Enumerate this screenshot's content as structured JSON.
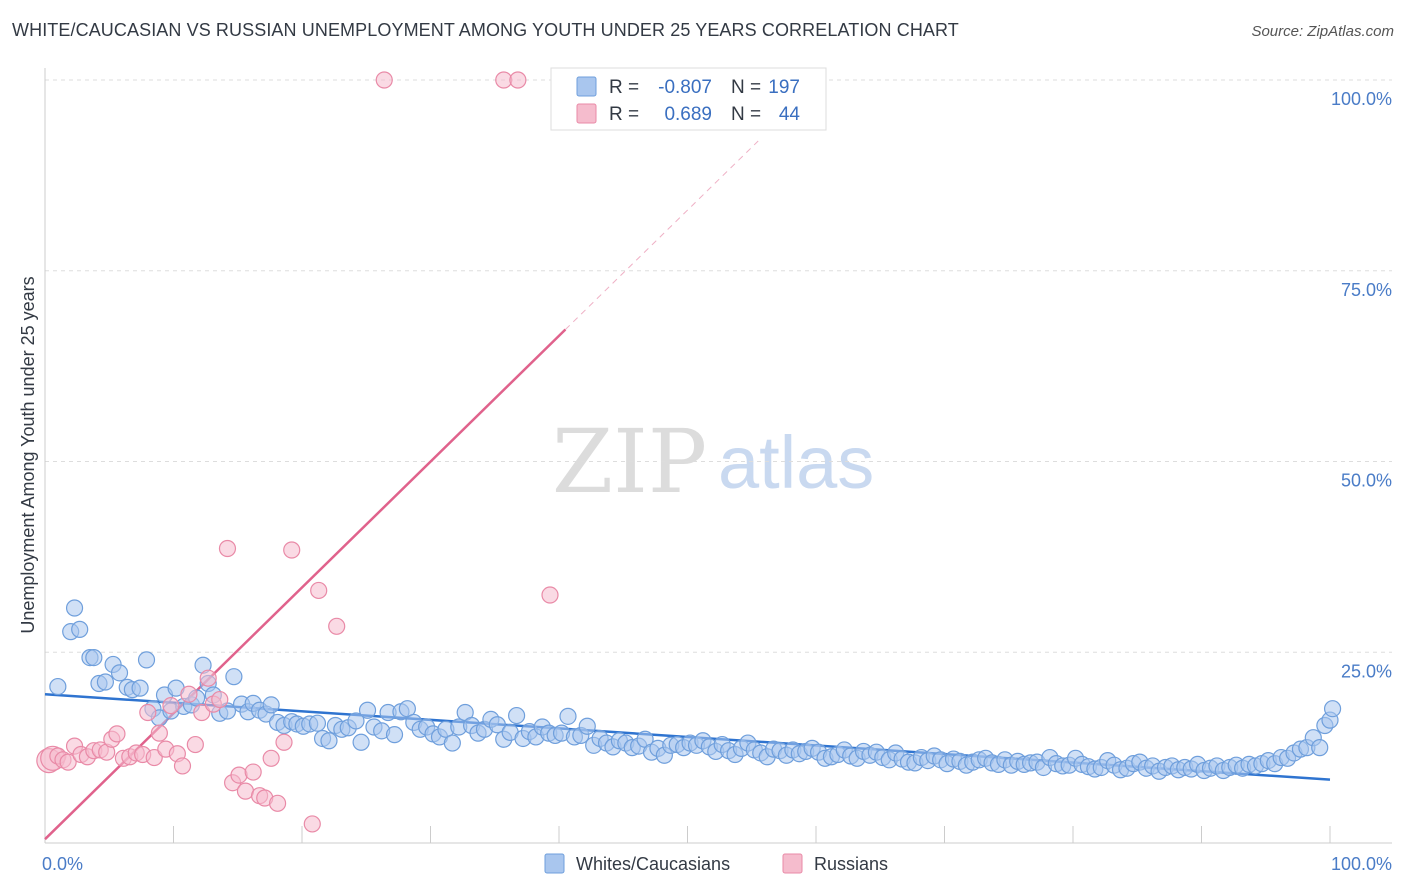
{
  "title": "WHITE/CAUCASIAN VS RUSSIAN UNEMPLOYMENT AMONG YOUTH UNDER 25 YEARS CORRELATION CHART",
  "source": "Source: ZipAtlas.com",
  "watermark": {
    "zip": "ZIP",
    "atlas": "atlas"
  },
  "colors": {
    "blue_fill": "#a9c6ee",
    "blue_stroke": "#6f9fdc",
    "blue_line": "#2f74d0",
    "pink_fill": "#f5bccd",
    "pink_stroke": "#e98aa7",
    "pink_line": "#e0628c",
    "grid": "#dddddd",
    "tick_text": "#4a7cc7"
  },
  "legend": {
    "rows": [
      {
        "r_label": "R =",
        "r_value": "-0.807",
        "n_label": "N =",
        "n_value": "197"
      },
      {
        "r_label": "R =",
        "r_value": "0.689",
        "n_label": "N =",
        "n_value": "44"
      }
    ]
  },
  "bottom_legend": [
    "Whites/Caucasians",
    "Russians"
  ],
  "chart_data": {
    "type": "scatter",
    "title": "WHITE/CAUCASIAN VS RUSSIAN UNEMPLOYMENT AMONG YOUTH UNDER 25 YEARS CORRELATION CHART",
    "xlabel": "",
    "ylabel": "Unemployment Among Youth under 25 years",
    "xlim": [
      0,
      100
    ],
    "ylim": [
      0,
      100
    ],
    "x_tick_labels": [
      {
        "value": 0,
        "label": "0.0%"
      },
      {
        "value": 100,
        "label": "100.0%"
      }
    ],
    "y_tick_labels": [
      {
        "value": 25,
        "label": "25.0%"
      },
      {
        "value": 50,
        "label": "50.0%"
      },
      {
        "value": 75,
        "label": "75.0%"
      },
      {
        "value": 100,
        "label": "100.0%"
      }
    ],
    "series": [
      {
        "name": "Whites/Caucasians",
        "R": -0.807,
        "N": 197,
        "trend": {
          "x0": 0,
          "y0": 19.5,
          "x1": 100,
          "y1": 8.3
        },
        "points": [
          [
            1,
            20.5
          ],
          [
            2,
            27.7
          ],
          [
            2.3,
            30.8
          ],
          [
            2.7,
            28
          ],
          [
            3.5,
            24.3
          ],
          [
            3.8,
            24.3
          ],
          [
            4.2,
            20.9
          ],
          [
            4.7,
            21.1
          ],
          [
            5.3,
            23.4
          ],
          [
            5.8,
            22.3
          ],
          [
            6.4,
            20.4
          ],
          [
            6.8,
            20.1
          ],
          [
            7.4,
            20.3
          ],
          [
            7.9,
            24
          ],
          [
            8.4,
            17.6
          ],
          [
            8.9,
            16.4
          ],
          [
            9.3,
            19.4
          ],
          [
            9.8,
            17.3
          ],
          [
            10.2,
            20.3
          ],
          [
            10.8,
            17.9
          ],
          [
            11.4,
            18.1
          ],
          [
            11.8,
            19
          ],
          [
            12.3,
            23.3
          ],
          [
            12.7,
            20.9
          ],
          [
            13.1,
            19.4
          ],
          [
            13.6,
            17
          ],
          [
            14.2,
            17.3
          ],
          [
            14.7,
            21.8
          ],
          [
            15.3,
            18.2
          ],
          [
            15.8,
            17.2
          ],
          [
            16.2,
            18.3
          ],
          [
            16.7,
            17.4
          ],
          [
            17.2,
            16.9
          ],
          [
            17.6,
            18.1
          ],
          [
            18.1,
            15.8
          ],
          [
            18.6,
            15.4
          ],
          [
            19.2,
            15.9
          ],
          [
            19.6,
            15.6
          ],
          [
            20.1,
            15.3
          ],
          [
            20.6,
            15.6
          ],
          [
            21.2,
            15.7
          ],
          [
            21.6,
            13.7
          ],
          [
            22.1,
            13.4
          ],
          [
            22.6,
            15.4
          ],
          [
            23.1,
            14.9
          ],
          [
            23.6,
            15.1
          ],
          [
            24.2,
            16
          ],
          [
            24.6,
            13.2
          ],
          [
            25.1,
            17.4
          ],
          [
            25.6,
            15.2
          ],
          [
            26.2,
            14.7
          ],
          [
            26.7,
            17.1
          ],
          [
            27.2,
            14.2
          ],
          [
            27.7,
            17.2
          ],
          [
            28.2,
            17.6
          ],
          [
            28.7,
            15.8
          ],
          [
            29.2,
            14.9
          ],
          [
            29.7,
            15.2
          ],
          [
            30.2,
            14.3
          ],
          [
            30.7,
            13.9
          ],
          [
            31.2,
            14.9
          ],
          [
            31.7,
            13.1
          ],
          [
            32.2,
            15.2
          ],
          [
            32.7,
            17.1
          ],
          [
            33.2,
            15.4
          ],
          [
            33.7,
            14.4
          ],
          [
            34.2,
            14.9
          ],
          [
            34.7,
            16.2
          ],
          [
            35.2,
            15.5
          ],
          [
            35.7,
            13.6
          ],
          [
            36.2,
            14.5
          ],
          [
            36.7,
            16.7
          ],
          [
            37.2,
            13.7
          ],
          [
            37.7,
            14.6
          ],
          [
            38.2,
            13.9
          ],
          [
            38.7,
            15.2
          ],
          [
            39.2,
            14.4
          ],
          [
            39.7,
            14.1
          ],
          [
            40.2,
            14.4
          ],
          [
            40.7,
            16.6
          ],
          [
            41.2,
            13.9
          ],
          [
            41.7,
            14.1
          ],
          [
            42.2,
            15.3
          ],
          [
            42.7,
            12.8
          ],
          [
            43.2,
            13.7
          ],
          [
            43.7,
            13.1
          ],
          [
            44.2,
            12.6
          ],
          [
            44.7,
            13.4
          ],
          [
            45.2,
            13.1
          ],
          [
            45.7,
            12.5
          ],
          [
            46.2,
            12.7
          ],
          [
            46.7,
            13.6
          ],
          [
            47.2,
            11.9
          ],
          [
            47.7,
            12.4
          ],
          [
            48.2,
            11.5
          ],
          [
            48.7,
            12.8
          ],
          [
            49.2,
            12.9
          ],
          [
            49.7,
            12.5
          ],
          [
            50.2,
            13.1
          ],
          [
            50.7,
            12.8
          ],
          [
            51.2,
            13.4
          ],
          [
            51.7,
            12.6
          ],
          [
            52.2,
            12
          ],
          [
            52.7,
            12.9
          ],
          [
            53.2,
            12.1
          ],
          [
            53.7,
            11.6
          ],
          [
            54.2,
            12.4
          ],
          [
            54.7,
            13.1
          ],
          [
            55.2,
            12.2
          ],
          [
            55.7,
            11.8
          ],
          [
            56.2,
            11.3
          ],
          [
            56.7,
            12.3
          ],
          [
            57.2,
            12.1
          ],
          [
            57.7,
            11.5
          ],
          [
            58.2,
            12.2
          ],
          [
            58.7,
            11.7
          ],
          [
            59.2,
            12
          ],
          [
            59.7,
            12.4
          ],
          [
            60.2,
            11.9
          ],
          [
            60.7,
            11.1
          ],
          [
            61.2,
            11.3
          ],
          [
            61.7,
            11.6
          ],
          [
            62.2,
            12.2
          ],
          [
            62.7,
            11.4
          ],
          [
            63.2,
            11.1
          ],
          [
            63.7,
            12
          ],
          [
            64.2,
            11.5
          ],
          [
            64.7,
            11.9
          ],
          [
            65.2,
            11.2
          ],
          [
            65.7,
            10.9
          ],
          [
            66.2,
            11.8
          ],
          [
            66.7,
            11
          ],
          [
            67.2,
            10.6
          ],
          [
            67.7,
            10.5
          ],
          [
            68.2,
            11.2
          ],
          [
            68.7,
            10.8
          ],
          [
            69.2,
            11.4
          ],
          [
            69.7,
            10.9
          ],
          [
            70.2,
            10.4
          ],
          [
            70.7,
            11
          ],
          [
            71.2,
            10.7
          ],
          [
            71.7,
            10.2
          ],
          [
            72.2,
            10.6
          ],
          [
            72.7,
            10.9
          ],
          [
            73.2,
            11.1
          ],
          [
            73.7,
            10.5
          ],
          [
            74.2,
            10.3
          ],
          [
            74.7,
            10.9
          ],
          [
            75.2,
            10.2
          ],
          [
            75.7,
            10.7
          ],
          [
            76.2,
            10.3
          ],
          [
            76.7,
            10.5
          ],
          [
            77.2,
            10.6
          ],
          [
            77.7,
            9.9
          ],
          [
            78.2,
            11.2
          ],
          [
            78.7,
            10.4
          ],
          [
            79.2,
            10.1
          ],
          [
            79.7,
            10.2
          ],
          [
            80.2,
            11.1
          ],
          [
            80.7,
            10.3
          ],
          [
            81.2,
            10
          ],
          [
            81.7,
            9.7
          ],
          [
            82.2,
            9.9
          ],
          [
            82.7,
            10.8
          ],
          [
            83.2,
            10.2
          ],
          [
            83.7,
            9.6
          ],
          [
            84.2,
            9.8
          ],
          [
            84.7,
            10.4
          ],
          [
            85.2,
            10.6
          ],
          [
            85.7,
            9.8
          ],
          [
            86.2,
            10.1
          ],
          [
            86.7,
            9.4
          ],
          [
            87.2,
            9.9
          ],
          [
            87.7,
            10.1
          ],
          [
            88.2,
            9.6
          ],
          [
            88.7,
            9.9
          ],
          [
            89.2,
            9.7
          ],
          [
            89.7,
            10.3
          ],
          [
            90.2,
            9.5
          ],
          [
            90.7,
            9.8
          ],
          [
            91.2,
            10.1
          ],
          [
            91.7,
            9.5
          ],
          [
            92.2,
            9.9
          ],
          [
            92.7,
            10.2
          ],
          [
            93.2,
            9.8
          ],
          [
            93.7,
            10.3
          ],
          [
            94.2,
            10.1
          ],
          [
            94.7,
            10.4
          ],
          [
            95.2,
            10.8
          ],
          [
            95.7,
            10.4
          ],
          [
            96.2,
            11.2
          ],
          [
            96.7,
            11.1
          ],
          [
            97.2,
            11.8
          ],
          [
            97.7,
            12.3
          ],
          [
            98.2,
            12.5
          ],
          [
            98.7,
            13.8
          ],
          [
            99.2,
            12.5
          ],
          [
            99.6,
            15.4
          ],
          [
            100,
            16.1
          ],
          [
            100.2,
            17.6
          ]
        ]
      },
      {
        "name": "Russians",
        "R": 0.689,
        "N": 44,
        "trend": {
          "x0": 0,
          "y0": 0.5,
          "x1": 40.5,
          "y1": 67.3,
          "dash_x1": 55.5,
          "dash_y1": 92
        },
        "points": [
          [
            0.3,
            10.8
          ],
          [
            0.6,
            11.1
          ],
          [
            1,
            11.4
          ],
          [
            1.4,
            10.9
          ],
          [
            1.8,
            10.6
          ],
          [
            2.3,
            12.7
          ],
          [
            2.8,
            11.6
          ],
          [
            3.3,
            11.3
          ],
          [
            3.8,
            12.1
          ],
          [
            4.3,
            12.2
          ],
          [
            4.8,
            11.9
          ],
          [
            5.2,
            13.6
          ],
          [
            5.6,
            14.3
          ],
          [
            6.1,
            11.1
          ],
          [
            6.6,
            11.3
          ],
          [
            7.1,
            11.8
          ],
          [
            7.6,
            11.6
          ],
          [
            8,
            17.1
          ],
          [
            8.5,
            11.2
          ],
          [
            8.9,
            14.4
          ],
          [
            9.4,
            12.3
          ],
          [
            9.8,
            18
          ],
          [
            10.3,
            11.7
          ],
          [
            10.7,
            10.1
          ],
          [
            11.2,
            19.5
          ],
          [
            11.7,
            12.9
          ],
          [
            12.2,
            17.1
          ],
          [
            12.7,
            21.6
          ],
          [
            13.1,
            18.2
          ],
          [
            13.6,
            18.8
          ],
          [
            14.2,
            38.6
          ],
          [
            14.6,
            7.9
          ],
          [
            15.1,
            8.9
          ],
          [
            15.6,
            6.8
          ],
          [
            16.2,
            9.3
          ],
          [
            16.7,
            6.2
          ],
          [
            17.1,
            5.9
          ],
          [
            17.6,
            11.1
          ],
          [
            18.1,
            5.2
          ],
          [
            18.6,
            13.2
          ],
          [
            19.2,
            38.4
          ],
          [
            20.8,
            2.5
          ],
          [
            21.3,
            33.1
          ],
          [
            22.7,
            28.4
          ],
          [
            26.4,
            100
          ],
          [
            35.7,
            100
          ],
          [
            36.8,
            100
          ],
          [
            39.3,
            32.5
          ]
        ]
      }
    ]
  }
}
